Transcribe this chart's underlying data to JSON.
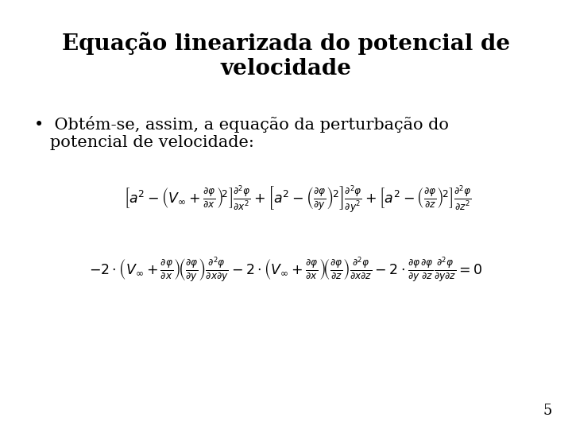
{
  "background_color": "#ffffff",
  "title_line1": "Equação linearizada do potencial de",
  "title_line2": "velocidade",
  "title_fontsize": 20,
  "title_fontweight": "bold",
  "title_color": "#000000",
  "bullet_text_line1": "•  Obtém-se, assim, a equação da perturbação do",
  "bullet_text_line2": "   potencial de velocidade:",
  "bullet_fontsize": 15,
  "bullet_color": "#000000",
  "eq1": "\\left[a^2-\\left(V_{\\infty}+\\frac{\\partial\\varphi}{\\partial x}\\right)^{\\!2}\\right]\\frac{\\partial^2\\varphi}{\\partial x^2}+\\left[a^2-\\left(\\frac{\\partial\\varphi}{\\partial y}\\right)^{\\!2}\\right]\\frac{\\partial^2\\varphi}{\\partial y^2}+\\left[a^2-\\left(\\frac{\\partial\\varphi}{\\partial z}\\right)^{\\!2}\\right]\\frac{\\partial^2\\varphi}{\\partial z^2}",
  "eq2": "-2\\cdot\\!\\left(V_{\\infty}+\\frac{\\partial\\varphi}{\\partial x}\\right)\\!\\left(\\frac{\\partial\\varphi}{\\partial y}\\right)\\frac{\\partial^2\\varphi}{\\partial x\\partial y}-2\\cdot\\!\\left(V_{\\infty}+\\frac{\\partial\\varphi}{\\partial x}\\right)\\!\\left(\\frac{\\partial\\varphi}{\\partial z}\\right)\\frac{\\partial^2\\varphi}{\\partial x\\partial z}-2\\cdot\\frac{\\partial\\varphi}{\\partial y}\\frac{\\partial\\varphi}{\\partial z}\\frac{\\partial^2\\varphi}{\\partial y\\partial z}=0",
  "eq_fontsize": 12.5,
  "page_number": "5",
  "page_number_fontsize": 13
}
